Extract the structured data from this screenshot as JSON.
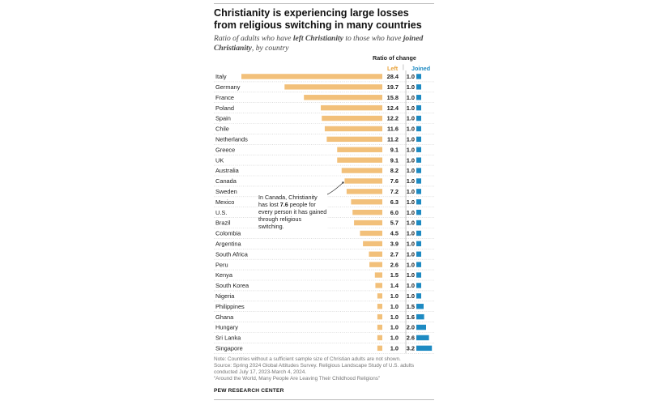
{
  "title": "Christianity is experiencing large losses from religious switching in many countries",
  "subtitle": {
    "part1": "Ratio of adults who have ",
    "left_term": "left Christianity",
    "part2": " to those who have ",
    "joined_term": "joined Christianity",
    "part3": ", by country"
  },
  "column_header": "Ratio of change",
  "legend": {
    "left": "Left",
    "separator": "|",
    "joined": "Joined"
  },
  "annotation": {
    "before": "In Canada, Christianity has lost ",
    "value": "7.6",
    "after": " people for every person it has gained through religious switching."
  },
  "notes": {
    "note": "Note: Countries without a sufficient sample size of Christian adults are not shown.",
    "source": "Source: Spring 2024 Global Attitudes Survey. Religious Landscape Study of U.S. adults conducted July 17, 2023-March 4, 2024.",
    "report": "“Around the World, Many People Are Leaving Their Childhood Religions”"
  },
  "brand": "PEW RESEARCH CENTER",
  "colors": {
    "left": "#f2c07a",
    "joined": "#1d8ac2",
    "left_label": "#e8a23a"
  },
  "chart_data": {
    "type": "bar",
    "title": "Christianity is experiencing large losses from religious switching in many countries",
    "categories": [
      "Italy",
      "Germany",
      "France",
      "Poland",
      "Spain",
      "Chile",
      "Netherlands",
      "Greece",
      "UK",
      "Australia",
      "Canada",
      "Sweden",
      "Mexico",
      "U.S.",
      "Brazil",
      "Colombia",
      "Argentina",
      "South Africa",
      "Peru",
      "Kenya",
      "South Korea",
      "Nigeria",
      "Philippines",
      "Ghana",
      "Hungary",
      "Sri Lanka",
      "Singapore"
    ],
    "series": [
      {
        "name": "Left",
        "values": [
          28.4,
          19.7,
          15.8,
          12.4,
          12.2,
          11.6,
          11.2,
          9.1,
          9.1,
          8.2,
          7.6,
          7.2,
          6.3,
          6.0,
          5.7,
          4.5,
          3.9,
          2.7,
          2.6,
          1.5,
          1.4,
          1.0,
          1.0,
          1.0,
          1.0,
          1.0,
          1.0
        ]
      },
      {
        "name": "Joined",
        "values": [
          1.0,
          1.0,
          1.0,
          1.0,
          1.0,
          1.0,
          1.0,
          1.0,
          1.0,
          1.0,
          1.0,
          1.0,
          1.0,
          1.0,
          1.0,
          1.0,
          1.0,
          1.0,
          1.0,
          1.0,
          1.0,
          1.0,
          1.5,
          1.6,
          2.0,
          2.6,
          3.2
        ]
      }
    ],
    "legend": "top-right",
    "grid": false
  }
}
